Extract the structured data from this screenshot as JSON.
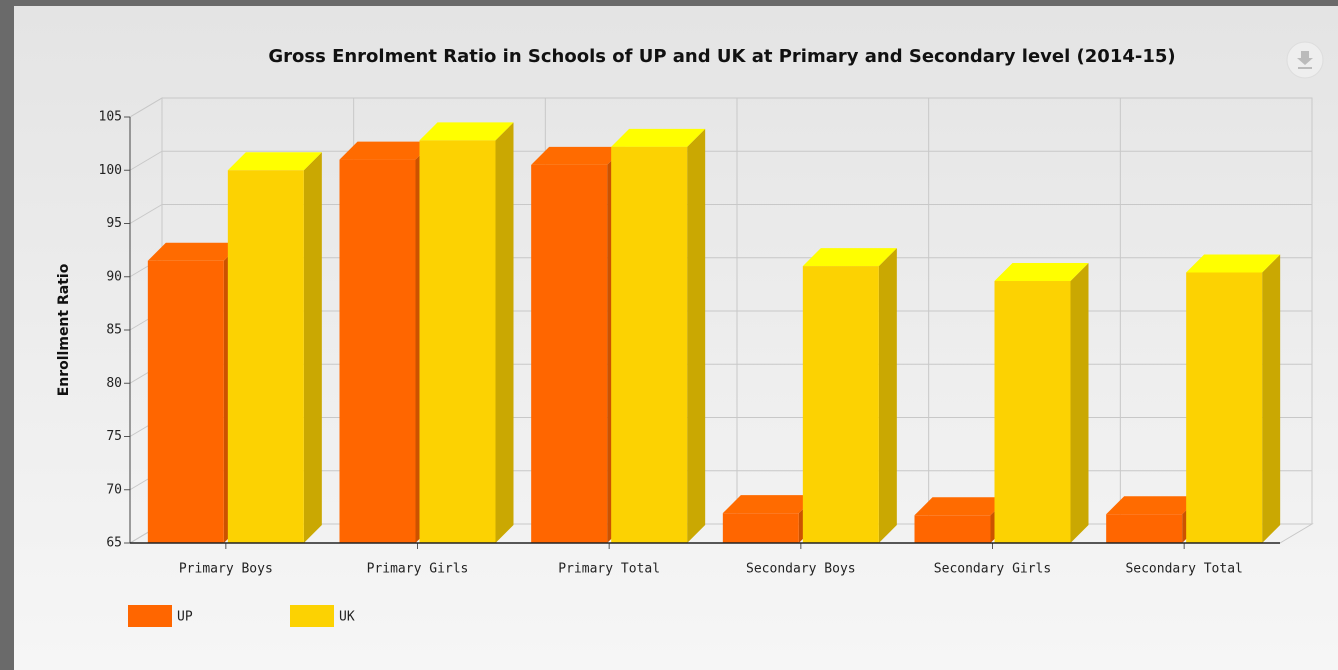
{
  "chart_data": {
    "type": "bar3d",
    "title": "Gross Enrolment Ratio in Schools of UP and UK at Primary and Secondary level (2014-15)",
    "y_label": "Enrollment Ratio",
    "categories": [
      "Primary Boys",
      "Primary Girls",
      "Primary Total",
      "Secondary Boys",
      "Secondary Girls",
      "Secondary Total"
    ],
    "series": [
      {
        "name": "UP",
        "color": "#ff6600",
        "values": [
          91.5,
          101,
          100.5,
          67.8,
          67.6,
          67.7
        ]
      },
      {
        "name": "UK",
        "color": "#fcd202",
        "values": [
          100,
          102.8,
          102.2,
          91,
          89.6,
          90.4
        ]
      }
    ],
    "ylim": [
      65,
      105
    ],
    "yticks": [
      65,
      70,
      75,
      80,
      85,
      90,
      95,
      100,
      105
    ],
    "grid": true
  }
}
